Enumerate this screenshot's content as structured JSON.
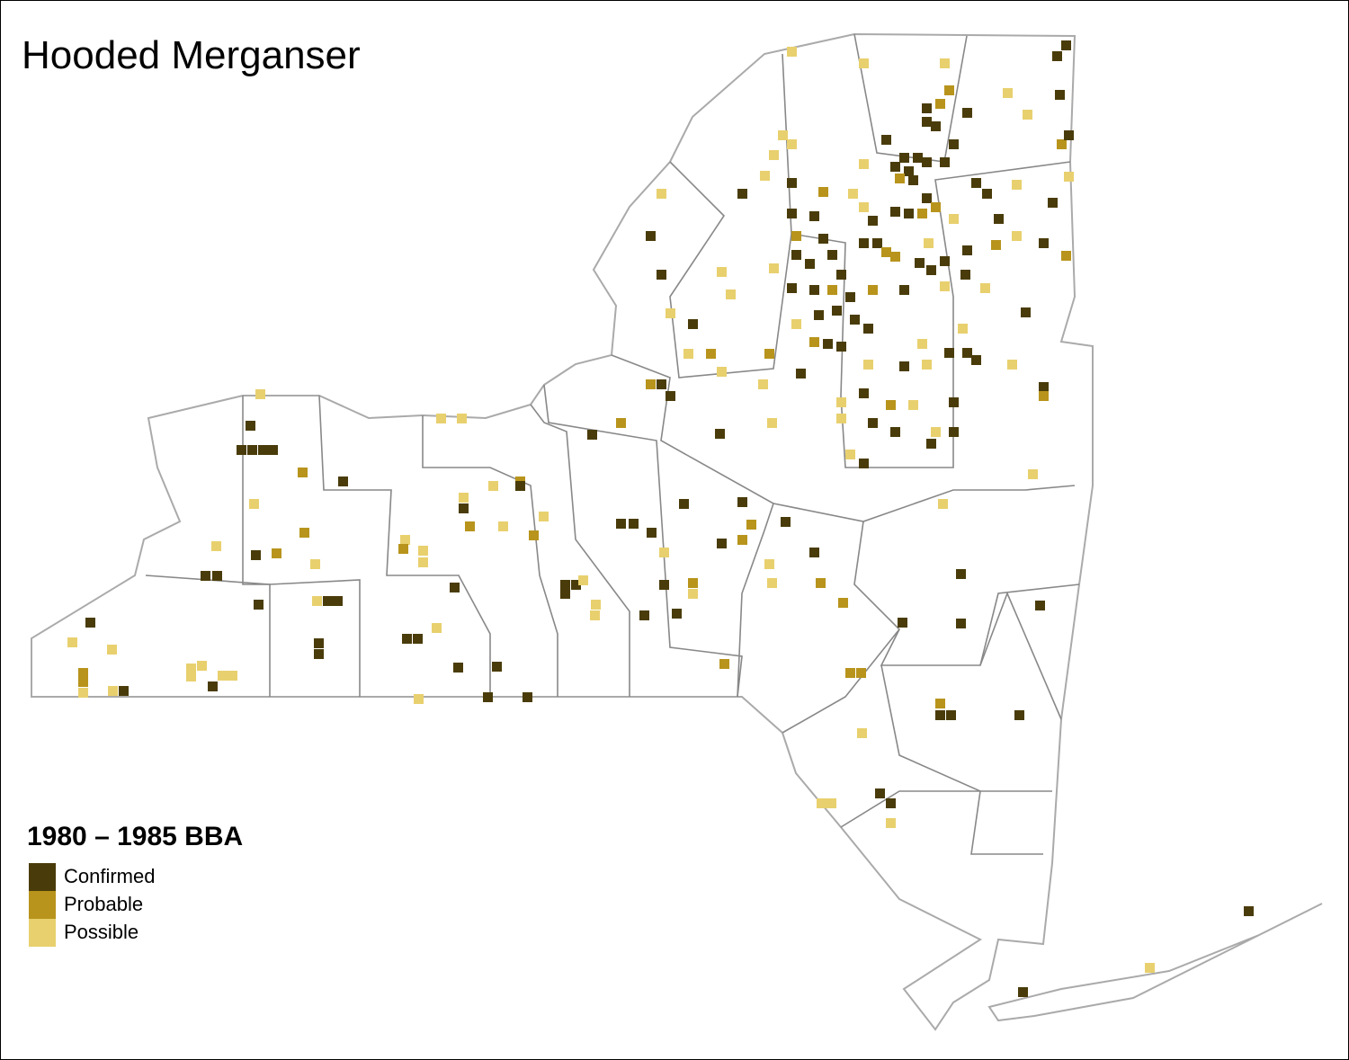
{
  "title": "Hooded Merganser",
  "legend": {
    "title": "1980 – 1985 BBA",
    "items": [
      {
        "label": "Confirmed",
        "color": "#4a3c0a"
      },
      {
        "label": "Probable",
        "color": "#b8941c"
      },
      {
        "label": "Possible",
        "color": "#e8d06e"
      }
    ]
  }
}
